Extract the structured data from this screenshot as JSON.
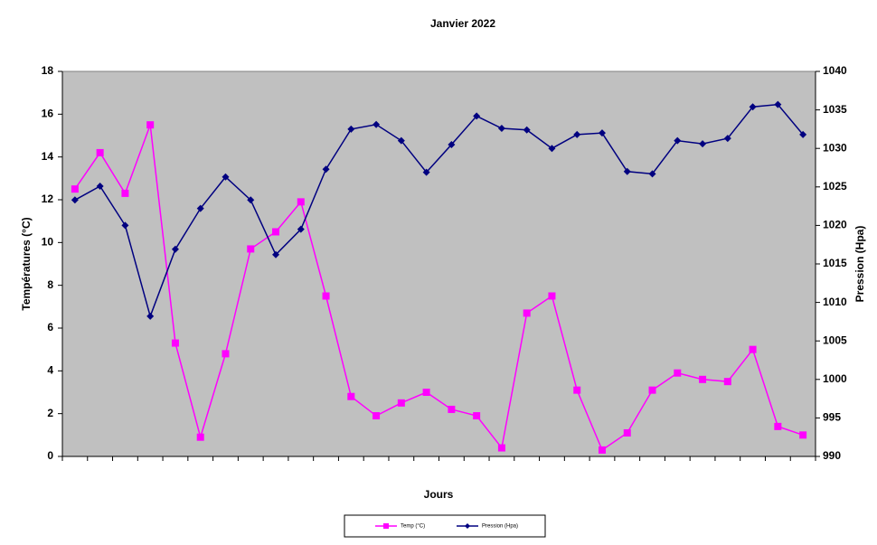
{
  "chart_data": {
    "type": "line",
    "title": "Janvier 2022",
    "x_label": "Jours",
    "y_label": "Températures (°C)",
    "y2_label": "Pression (Hpa)",
    "categories": [
      null,
      null,
      null,
      null,
      null,
      null,
      null,
      null,
      null,
      null,
      null,
      null,
      null,
      null,
      null,
      null,
      null,
      null,
      null,
      null,
      null,
      null,
      null,
      null,
      null,
      null,
      null,
      null,
      null,
      null
    ],
    "series": [
      {
        "name": "Temp (°C)",
        "color": "#ff00ff",
        "marker": "square",
        "values": [
          12.5,
          14.2,
          12.3,
          15.5,
          5.3,
          0.9,
          4.8,
          9.7,
          10.5,
          11.9,
          7.5,
          2.8,
          1.9,
          2.5,
          3.0,
          2.2,
          1.9,
          0.4,
          6.7,
          7.5,
          3.1,
          0.3,
          1.1,
          3.1,
          3.9,
          3.6,
          3.5,
          5.0,
          1.4,
          1.0
        ]
      },
      {
        "name": "Pression (Hpa)",
        "color": "#000080",
        "marker": "diamond",
        "axis": "y2",
        "values": [
          1023.3,
          1025.1,
          1020.0,
          1008.2,
          1016.9,
          1022.2,
          1026.3,
          1023.3,
          1016.2,
          1019.5,
          1027.3,
          1032.5,
          1033.1,
          1031.0,
          1026.9,
          1030.5,
          1034.2,
          1032.6,
          1032.4,
          1030.0,
          1031.8,
          1032.0,
          1027.0,
          1026.7,
          1031.0,
          1030.6,
          1031.3,
          1035.4,
          1035.7,
          1031.8
        ]
      }
    ],
    "ylim": [
      0,
      18
    ],
    "yticks": [
      0,
      2,
      4,
      6,
      8,
      10,
      12,
      14,
      16,
      18
    ],
    "y2lim": [
      990,
      1040
    ],
    "y2ticks": [
      990,
      995,
      1000,
      1005,
      1010,
      1015,
      1020,
      1025,
      1030,
      1035,
      1040
    ],
    "legend": "bottom",
    "plot_background": "#c0c0c0"
  }
}
